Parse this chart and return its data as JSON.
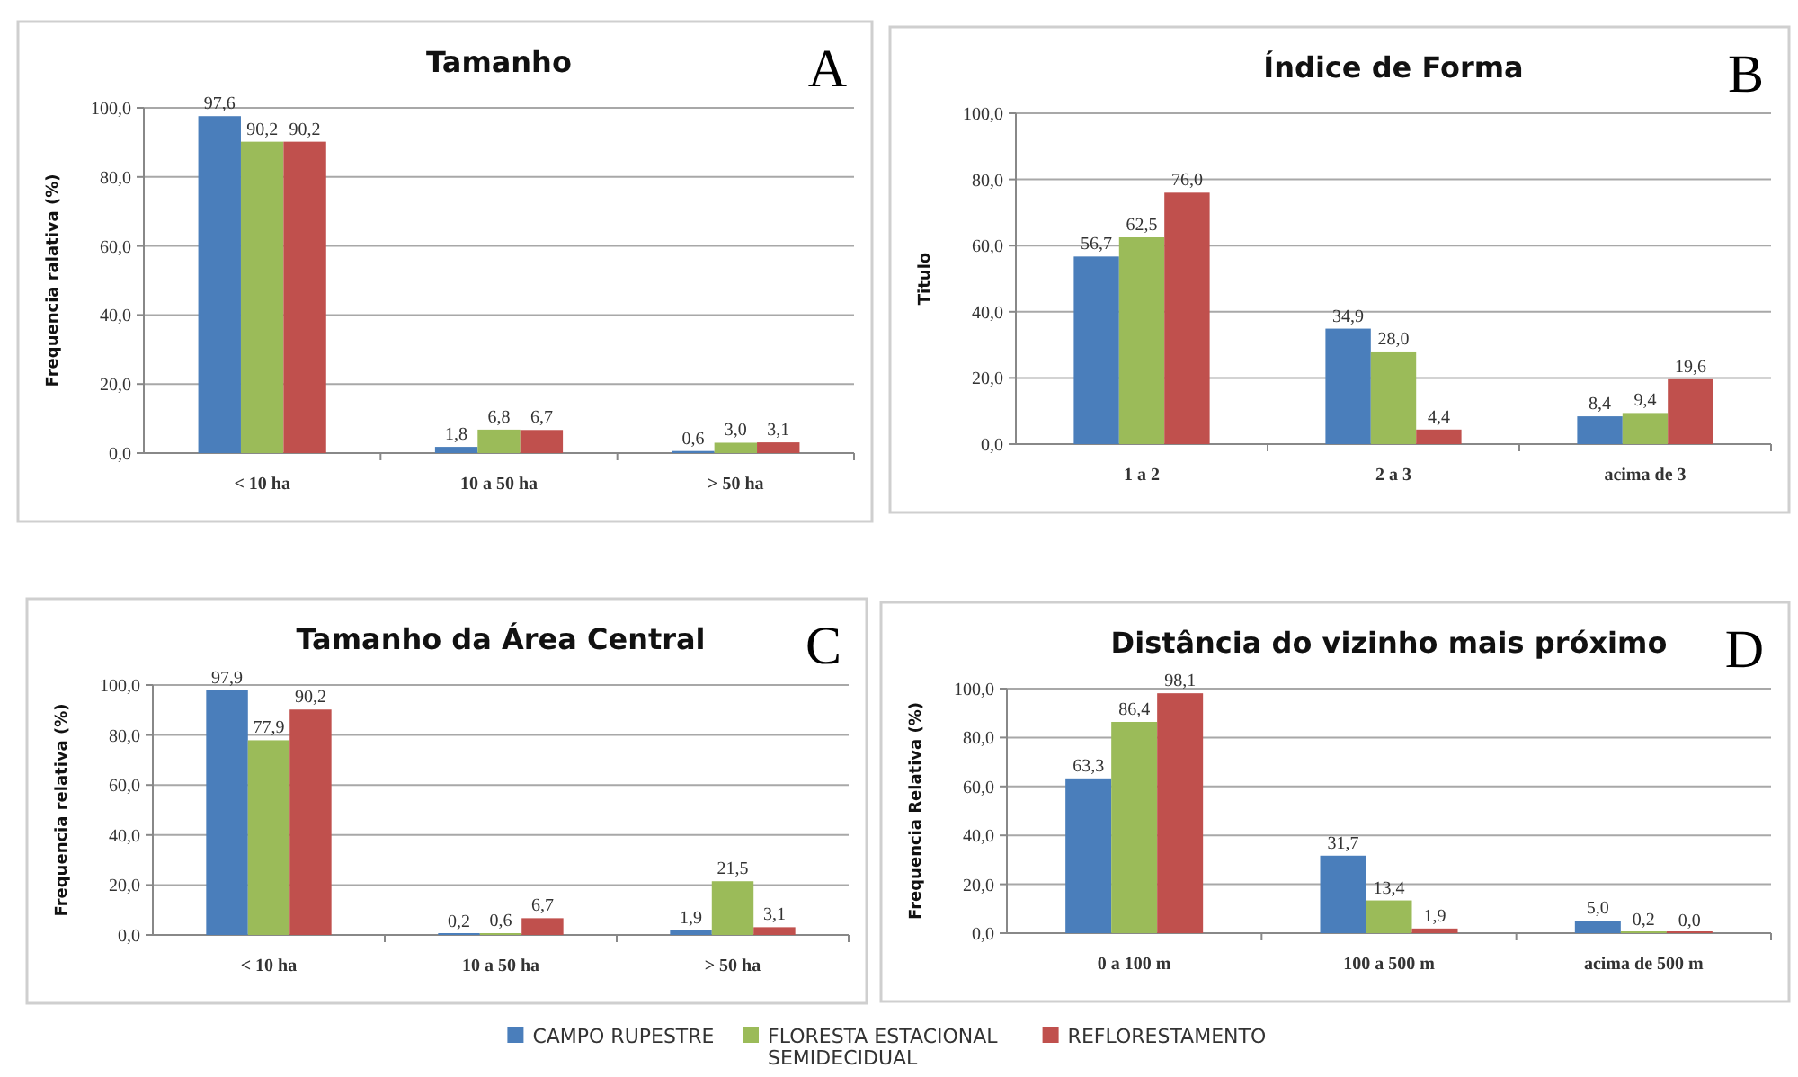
{
  "chart_data": [
    {
      "type": "bar",
      "title": "Tamanho",
      "ylabel": "Frequencia ralativa (%)",
      "annotations": [
        "A"
      ],
      "categories": [
        "< 10 ha",
        "10 a 50 ha",
        "> 50 ha"
      ],
      "series": [
        {
          "color": "#4a7ebb",
          "values": [
            97.6,
            1.8,
            0.6
          ],
          "value_labels": [
            "97,6",
            "1,8",
            "0,6"
          ]
        },
        {
          "color": "#9bbb59",
          "values": [
            90.2,
            6.8,
            3.0
          ],
          "value_labels": [
            "90,2",
            "6,8",
            "3,0"
          ]
        },
        {
          "color": "#c0504d",
          "values": [
            90.2,
            6.7,
            3.1
          ],
          "value_labels": [
            "90,2",
            "6,7",
            "3,1"
          ]
        }
      ],
      "ylim": [
        0,
        100
      ],
      "yticks": [
        {
          "value": 0,
          "label": "0,0"
        },
        {
          "value": 20,
          "label": "20,0"
        },
        {
          "value": 40,
          "label": "40,0"
        },
        {
          "value": 60,
          "label": "60,0"
        },
        {
          "value": 80,
          "label": "80,0"
        },
        {
          "value": 100,
          "label": "100,0"
        }
      ],
      "grid": "y",
      "legend": false
    },
    {
      "type": "bar",
      "title": "Índice de Forma",
      "ylabel": "Titulo",
      "annotations": [
        "B"
      ],
      "categories": [
        "1 a 2",
        "2 a 3",
        "acima de 3"
      ],
      "series": [
        {
          "color": "#4a7ebb",
          "values": [
            56.7,
            34.9,
            8.4
          ],
          "value_labels": [
            "56,7",
            "34,9",
            "8,4"
          ]
        },
        {
          "color": "#9bbb59",
          "values": [
            62.5,
            28.0,
            9.4
          ],
          "value_labels": [
            "62,5",
            "28,0",
            "9,4"
          ]
        },
        {
          "color": "#c0504d",
          "values": [
            76.0,
            4.4,
            19.6
          ],
          "value_labels": [
            "76,0",
            "4,4",
            "19,6"
          ]
        }
      ],
      "ylim": [
        0,
        100
      ],
      "yticks": [
        {
          "value": 0,
          "label": "0,0"
        },
        {
          "value": 20,
          "label": "20,0"
        },
        {
          "value": 40,
          "label": "40,0"
        },
        {
          "value": 60,
          "label": "60,0"
        },
        {
          "value": 80,
          "label": "80,0"
        },
        {
          "value": 100,
          "label": "100,0"
        }
      ],
      "grid": "y",
      "legend": false
    },
    {
      "type": "bar",
      "title": "Tamanho da Área Central",
      "ylabel": "Frequencia relativa (%)",
      "annotations": [
        "C"
      ],
      "categories": [
        "< 10 ha",
        "10 a 50 ha",
        "> 50 ha"
      ],
      "series": [
        {
          "color": "#4a7ebb",
          "values": [
            97.9,
            0.2,
            1.9
          ],
          "value_labels": [
            "97,9",
            "0,2",
            "1,9"
          ]
        },
        {
          "color": "#9bbb59",
          "values": [
            77.9,
            0.6,
            21.5
          ],
          "value_labels": [
            "77,9",
            "0,6",
            "21,5"
          ]
        },
        {
          "color": "#c0504d",
          "values": [
            90.2,
            6.7,
            3.1
          ],
          "value_labels": [
            "90,2",
            "6,7",
            "3,1"
          ]
        }
      ],
      "ylim": [
        0,
        100
      ],
      "yticks": [
        {
          "value": 0,
          "label": "0,0"
        },
        {
          "value": 20,
          "label": "20,0"
        },
        {
          "value": 40,
          "label": "40,0"
        },
        {
          "value": 60,
          "label": "60,0"
        },
        {
          "value": 80,
          "label": "80,0"
        },
        {
          "value": 100,
          "label": "100,0"
        }
      ],
      "grid": "y",
      "legend": false
    },
    {
      "type": "bar",
      "title": "Distância do vizinho mais próximo",
      "ylabel": "Frequencia Relativa (%)",
      "annotations": [
        "D"
      ],
      "categories": [
        "0 a 100 m",
        "100 a 500 m",
        "acima de 500 m"
      ],
      "series": [
        {
          "name": "CAMPO RUPESTRE",
          "color": "#4a7ebb",
          "values": [
            63.3,
            31.7,
            5.0
          ],
          "value_labels": [
            "63,3",
            "31,7",
            "5,0"
          ]
        },
        {
          "name": "FLORESTA ESTACIONAL SEMIDECIDUAL",
          "color": "#9bbb59",
          "values": [
            86.4,
            13.4,
            0.2
          ],
          "value_labels": [
            "86,4",
            "13,4",
            "0,2"
          ]
        },
        {
          "name": "REFLORESTAMENTO",
          "color": "#c0504d",
          "values": [
            98.1,
            1.9,
            0.0
          ],
          "value_labels": [
            "98,1",
            "1,9",
            "0,0"
          ]
        }
      ],
      "ylim": [
        0,
        100
      ],
      "yticks": [
        {
          "value": 0,
          "label": "0,0"
        },
        {
          "value": 20,
          "label": "20,0"
        },
        {
          "value": 40,
          "label": "40,0"
        },
        {
          "value": 60,
          "label": "60,0"
        },
        {
          "value": 80,
          "label": "80,0"
        },
        {
          "value": 100,
          "label": "100,0"
        }
      ],
      "grid": "y",
      "legend": "bottom"
    }
  ]
}
